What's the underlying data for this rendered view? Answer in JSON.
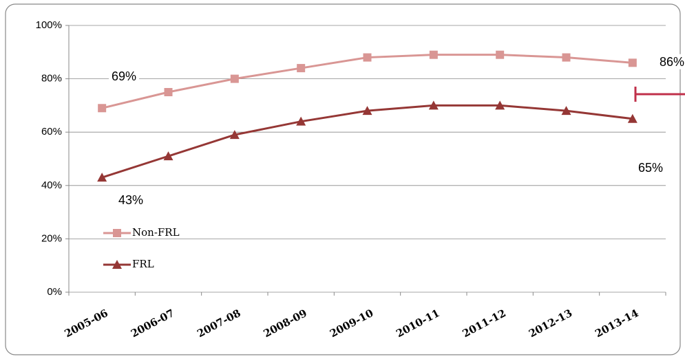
{
  "chart_data": {
    "type": "line",
    "categories": [
      "2005-06",
      "2006-07",
      "2007-08",
      "2008-09",
      "2009-10",
      "2010-11",
      "2011-12",
      "2012-13",
      "2013-14"
    ],
    "series": [
      {
        "name": "Non-FRL",
        "color": "#d99694",
        "marker": "square",
        "values": [
          69,
          75,
          80,
          84,
          88,
          89,
          89,
          88,
          86
        ],
        "value_labels": [
          "69%",
          null,
          null,
          null,
          null,
          null,
          null,
          null,
          "86%"
        ]
      },
      {
        "name": "FRL",
        "color": "#953735",
        "marker": "triangle",
        "values": [
          43,
          51,
          59,
          64,
          68,
          70,
          70,
          68,
          65
        ],
        "value_labels": [
          "43%",
          null,
          null,
          null,
          null,
          null,
          null,
          null,
          "65%"
        ]
      }
    ],
    "ylim": [
      0,
      100
    ],
    "yticks": [
      {
        "value": 0,
        "label": "0%"
      },
      {
        "value": 20,
        "label": "20%"
      },
      {
        "value": 40,
        "label": "40%"
      },
      {
        "value": 60,
        "label": "60%"
      },
      {
        "value": 80,
        "label": "80%"
      },
      {
        "value": 100,
        "label": "100%"
      }
    ],
    "grid": true
  }
}
